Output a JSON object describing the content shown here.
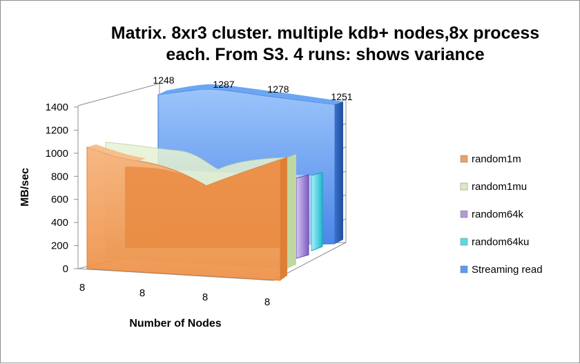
{
  "chart_data": {
    "type": "area",
    "title_lines": [
      "Matrix. 8xr3 cluster. multiple kdb+ nodes,8x process",
      "each.  From S3. 4 runs: shows variance"
    ],
    "xlabel": "Number of Nodes",
    "ylabel": "MB/sec",
    "categories": [
      "8",
      "8",
      "8",
      "8"
    ],
    "ylim": [
      0,
      1400
    ],
    "yticks": [
      0,
      200,
      400,
      600,
      800,
      1000,
      1200,
      1400
    ],
    "grid": false,
    "legend_position": "right",
    "series": [
      {
        "name": "random1m",
        "values": [
          1020,
          950,
          920,
          960
        ],
        "color": "#f0a060"
      },
      {
        "name": "random1mu",
        "values": [
          1020,
          940,
          840,
          950
        ],
        "color": "#d9ecc0"
      },
      {
        "name": "random64k",
        "values": [
          790,
          790,
          780,
          790
        ],
        "color": "#b49ad8"
      },
      {
        "name": "random64ku",
        "values": [
          790,
          790,
          785,
          790
        ],
        "color": "#5ad8e6"
      },
      {
        "name": "Streaming read",
        "values": [
          1248,
          1287,
          1278,
          1251
        ],
        "color": "#5b9bf0",
        "labels": [
          "1248",
          "1287",
          "1278",
          "1251"
        ]
      }
    ]
  }
}
